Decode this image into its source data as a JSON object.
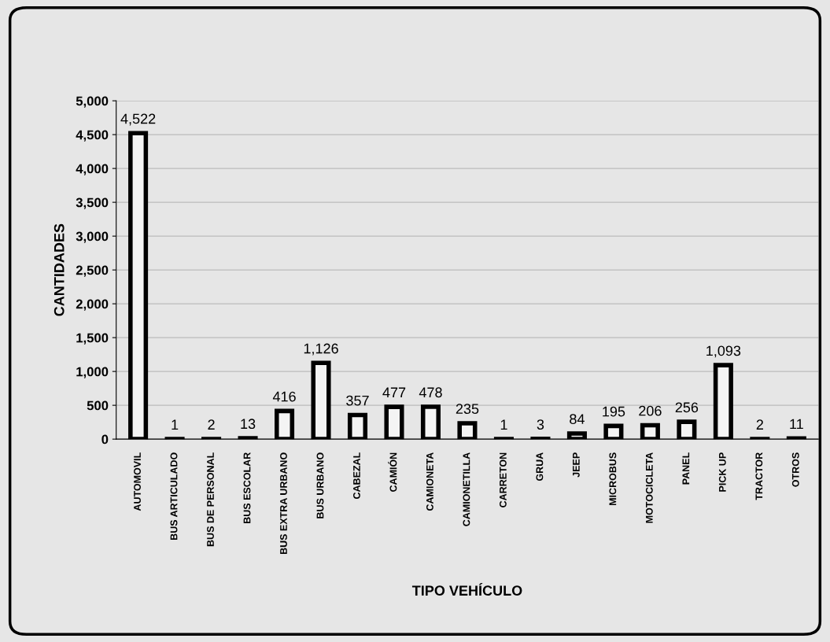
{
  "chart_data": {
    "type": "bar",
    "xlabel": "TIPO VEHÍCULO",
    "ylabel": "CANTIDADES",
    "categories": [
      "AUTOMOVIL",
      "BUS ARTICULADO",
      "BUS DE PERSONAL",
      "BUS ESCOLAR",
      "BUS EXTRA URBANO",
      "BUS URBANO",
      "CABEZAL",
      "CAMIÓN",
      "CAMIONETA",
      "CAMIONETILLA",
      "CARRETON",
      "GRUA",
      "JEEP",
      "MICROBUS",
      "MOTOCICLETA",
      "PANEL",
      "PICK UP",
      "TRACTOR",
      "OTROS"
    ],
    "values": [
      4522,
      1,
      2,
      13,
      416,
      1126,
      357,
      477,
      478,
      235,
      1,
      3,
      84,
      195,
      206,
      256,
      1093,
      2,
      11
    ],
    "value_labels": [
      "4,522",
      "1",
      "2",
      "13",
      "416",
      "1,126",
      "357",
      "477",
      "478",
      "235",
      "1",
      "3",
      "84",
      "195",
      "206",
      "256",
      "1,093",
      "2",
      "11"
    ],
    "color": "#f4f4f4",
    "ylim": [
      0,
      5000
    ],
    "yticks": [
      0,
      500,
      {
        "value": 1000,
        "label": "1,000"
      },
      {
        "value": 1500,
        "label": "1,500"
      },
      {
        "value": 2000,
        "label": "2,000"
      },
      {
        "value": 2500,
        "label": "2,500"
      },
      {
        "value": 3000,
        "label": "3,000"
      },
      {
        "value": 3500,
        "label": "3,500"
      },
      {
        "value": 4000,
        "label": "4,000"
      },
      {
        "value": 4500,
        "label": "4,500"
      },
      {
        "value": 5000,
        "label": "5,000"
      }
    ],
    "grid": "y",
    "legend": false
  }
}
